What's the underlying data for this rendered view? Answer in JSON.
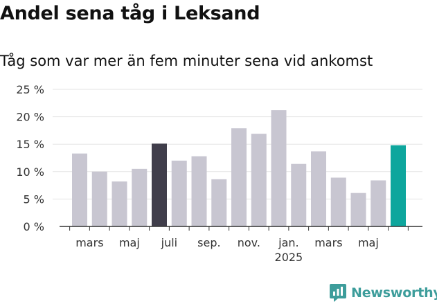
{
  "title": "Andel sena tåg i Leksand",
  "subtitle": "Tåg som var mer än fem minuter sena vid ankomst",
  "brand": {
    "name": "Newsworthy",
    "icon": "newsworthy-logo-icon",
    "color": "#3d9d9b"
  },
  "chart_data": {
    "type": "bar",
    "categories": [
      "2024-02",
      "2024-03",
      "2024-04",
      "2024-05",
      "2024-06",
      "2024-07",
      "2024-08",
      "2024-09",
      "2024-10",
      "2024-11",
      "2024-12",
      "2025-01",
      "2025-02",
      "2025-03",
      "2025-04",
      "2025-05",
      "2025-06"
    ],
    "values": [
      13.3,
      10.0,
      8.2,
      10.5,
      15.1,
      12.0,
      12.8,
      8.6,
      17.9,
      16.9,
      21.2,
      11.4,
      13.7,
      8.9,
      6.1,
      8.4,
      14.8
    ],
    "bar_colors": [
      "#c8c6d1",
      "#c8c6d1",
      "#c8c6d1",
      "#c8c6d1",
      "#403e4b",
      "#c8c6d1",
      "#c8c6d1",
      "#c8c6d1",
      "#c8c6d1",
      "#c8c6d1",
      "#c8c6d1",
      "#c8c6d1",
      "#c8c6d1",
      "#c8c6d1",
      "#c8c6d1",
      "#c8c6d1",
      "#0ea69d"
    ],
    "ylim": [
      0,
      25
    ],
    "yticks": [
      0,
      5,
      10,
      15,
      20,
      25
    ],
    "ytick_labels": [
      "0 %",
      "5 %",
      "10 %",
      "15 %",
      "20 %",
      "25 %"
    ],
    "xtick_labels": [
      {
        "at": 1,
        "text": "mars"
      },
      {
        "at": 3,
        "text": "maj"
      },
      {
        "at": 5,
        "text": "juli"
      },
      {
        "at": 7,
        "text": "sep."
      },
      {
        "at": 9,
        "text": "nov."
      },
      {
        "at": 11,
        "text": "jan.",
        "sub": "2025"
      },
      {
        "at": 13,
        "text": "mars"
      },
      {
        "at": 15,
        "text": "maj"
      }
    ],
    "grid": true,
    "xlabel": "",
    "ylabel": ""
  }
}
